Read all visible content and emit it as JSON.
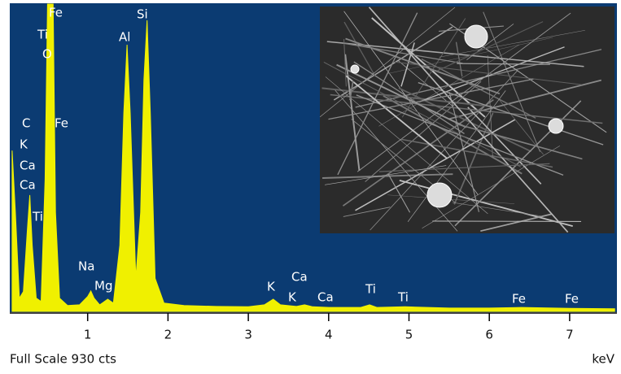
{
  "chart_data": {
    "type": "area",
    "footer_left": "Full Scale 930 cts",
    "x_label": "keV",
    "color": "#f0f000",
    "background": "#0b3b72",
    "xlim": [
      0.06,
      7.56
    ],
    "ylim": [
      0,
      930
    ],
    "xticks": [
      1,
      2,
      3,
      4,
      5,
      6,
      7
    ],
    "x": [
      0.06,
      0.1,
      0.15,
      0.2,
      0.25,
      0.28,
      0.31,
      0.36,
      0.42,
      0.47,
      0.5,
      0.53,
      0.57,
      0.6,
      0.65,
      0.75,
      0.9,
      1.0,
      1.04,
      1.08,
      1.15,
      1.25,
      1.32,
      1.4,
      1.45,
      1.49,
      1.53,
      1.6,
      1.66,
      1.7,
      1.74,
      1.78,
      1.84,
      1.95,
      2.2,
      2.6,
      3.0,
      3.2,
      3.31,
      3.4,
      3.6,
      3.7,
      3.8,
      4.0,
      4.4,
      4.51,
      4.6,
      4.95,
      5.5,
      6.0,
      6.4,
      7.0,
      7.56
    ],
    "values": [
      487,
      300,
      40,
      60,
      250,
      352,
      200,
      40,
      30,
      400,
      930,
      930,
      930,
      300,
      40,
      18,
      20,
      45,
      62,
      40,
      20,
      37,
      25,
      200,
      600,
      807,
      600,
      100,
      300,
      700,
      881,
      600,
      100,
      25,
      18,
      15,
      14,
      20,
      37,
      20,
      15,
      20,
      14,
      12,
      12,
      20,
      12,
      14,
      10,
      10,
      12,
      9,
      8
    ],
    "annotations": [
      "Fe",
      "Ti",
      "O",
      "Al",
      "Si",
      "C",
      "Fe",
      "K",
      "Ca",
      "Ca",
      "Ti",
      "Na",
      "Mg",
      "K",
      "Ca",
      "K",
      "Ca",
      "Ti",
      "Ti",
      "Fe",
      "Fe"
    ]
  }
}
